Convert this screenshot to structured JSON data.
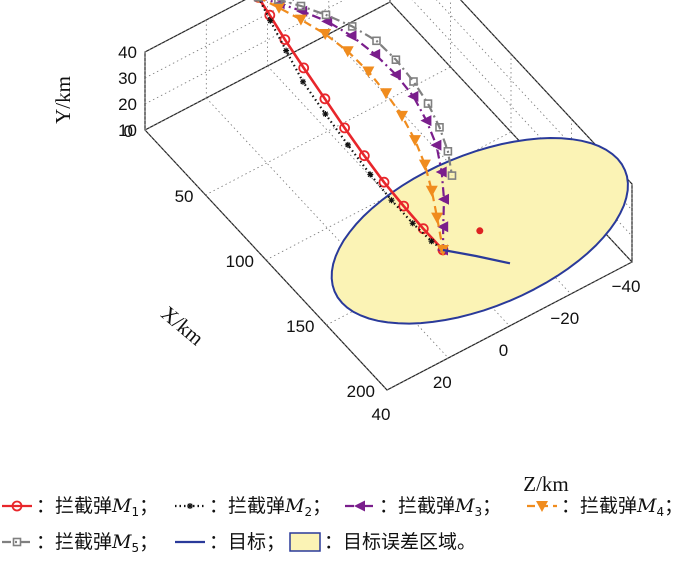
{
  "chart_data": {
    "type": "line",
    "projection": "3d",
    "title": "",
    "xlabel": "X/km",
    "ylabel": "Y/km",
    "zlabel": "Z/km",
    "xlim": [
      0,
      200
    ],
    "ylim": [
      10,
      40
    ],
    "zlim": [
      -40,
      40
    ],
    "grid": true,
    "legend_position": "bottom",
    "xticks": [
      "0",
      "50",
      "100",
      "150",
      "200"
    ],
    "yticks": [
      "10",
      "20",
      "30",
      "40"
    ],
    "zticks": [
      "40",
      "20",
      "0",
      "−20",
      "−40"
    ],
    "colors": {
      "M1": "#e8262b",
      "M2": "#111111",
      "M3": "#7a1e8c",
      "M4": "#f08c1e",
      "M5": "#808080",
      "target": "#2a3a9a",
      "region_fill": "#fbf3b5",
      "region_edge": "#2a3a9a"
    },
    "series": [
      {
        "id": "M1",
        "prefix": "：拦截弹",
        "sym": "M",
        "sub": "1",
        "marker": "circle",
        "dash": "solid",
        "points": [
          [
            5,
            42,
            5
          ],
          [
            12,
            38,
            4
          ],
          [
            22,
            33,
            3
          ],
          [
            35,
            28,
            2
          ],
          [
            50,
            23,
            1
          ],
          [
            65,
            19,
            0.5
          ],
          [
            80,
            15.5,
            0
          ],
          [
            95,
            12.5,
            -0.5
          ],
          [
            110,
            10.5,
            -1
          ],
          [
            125,
            9,
            -1.5
          ],
          [
            140,
            8,
            -2
          ]
        ]
      },
      {
        "id": "M2",
        "prefix": "：拦截弹",
        "sym": "M",
        "sub": "2",
        "marker": "asterisk",
        "dash": "dotted",
        "points": [
          [
            5,
            42,
            5
          ],
          [
            15,
            38,
            5
          ],
          [
            28,
            33,
            5
          ],
          [
            42,
            28,
            5
          ],
          [
            58,
            23,
            4
          ],
          [
            74,
            18.5,
            3
          ],
          [
            90,
            14.5,
            2
          ],
          [
            105,
            11.5,
            1
          ],
          [
            120,
            9.5,
            0
          ],
          [
            133,
            8.5,
            -1
          ],
          [
            140,
            8,
            -2
          ]
        ]
      },
      {
        "id": "M3",
        "prefix": "：拦截弹",
        "sym": "M",
        "sub": "3",
        "marker": "tri-left",
        "dash": "dash-dot",
        "points": [
          [
            5,
            42,
            5
          ],
          [
            10,
            39,
            0
          ],
          [
            16,
            36,
            -5
          ],
          [
            24,
            33,
            -10
          ],
          [
            34,
            30,
            -14
          ],
          [
            46,
            27,
            -17
          ],
          [
            58,
            24,
            -19
          ],
          [
            70,
            21,
            -20
          ],
          [
            82,
            18,
            -19.5
          ],
          [
            94,
            15.5,
            -18
          ],
          [
            106,
            13,
            -15
          ],
          [
            118,
            11,
            -11
          ],
          [
            130,
            9.5,
            -6
          ],
          [
            140,
            8,
            -2
          ]
        ]
      },
      {
        "id": "M4",
        "prefix": "：拦截弹",
        "sym": "M",
        "sub": "4",
        "marker": "tri-down",
        "dash": "dashed",
        "points": [
          [
            5,
            42,
            5
          ],
          [
            12,
            39,
            1
          ],
          [
            20,
            36,
            -3
          ],
          [
            30,
            33,
            -7
          ],
          [
            41,
            30,
            -10
          ],
          [
            53,
            27,
            -12
          ],
          [
            65,
            24,
            -13
          ],
          [
            77,
            21,
            -13.5
          ],
          [
            89,
            18,
            -13
          ],
          [
            101,
            15.5,
            -11.5
          ],
          [
            113,
            13,
            -9
          ],
          [
            125,
            10.5,
            -6
          ],
          [
            140,
            8,
            -2
          ]
        ]
      },
      {
        "id": "M5",
        "prefix": "：拦截弹",
        "sym": "M",
        "sub": "5",
        "marker": "square",
        "dash": "dash-dot",
        "points": [
          [
            5,
            42,
            5
          ],
          [
            9,
            40,
            0
          ],
          [
            15,
            37.5,
            -5
          ],
          [
            23,
            35,
            -10
          ],
          [
            32,
            32,
            -15
          ],
          [
            42,
            29,
            -19
          ],
          [
            53,
            26,
            -21
          ],
          [
            65,
            23,
            -22
          ],
          [
            77,
            20.5,
            -22
          ],
          [
            89,
            18,
            -21
          ],
          [
            101,
            16,
            -19
          ],
          [
            112,
            14,
            -16
          ]
        ]
      },
      {
        "id": "target",
        "prefix": "：目标；",
        "marker": "none",
        "dash": "solid",
        "points": [
          [
            140,
            8,
            -2
          ],
          [
            152,
            8,
            -8
          ],
          [
            165,
            8,
            -14
          ]
        ]
      }
    ],
    "region": {
      "label": "：目标误差区域。",
      "center_x": 140,
      "center_y": 8,
      "center_z": -14,
      "radius": 45
    },
    "legend_sep": "；"
  }
}
